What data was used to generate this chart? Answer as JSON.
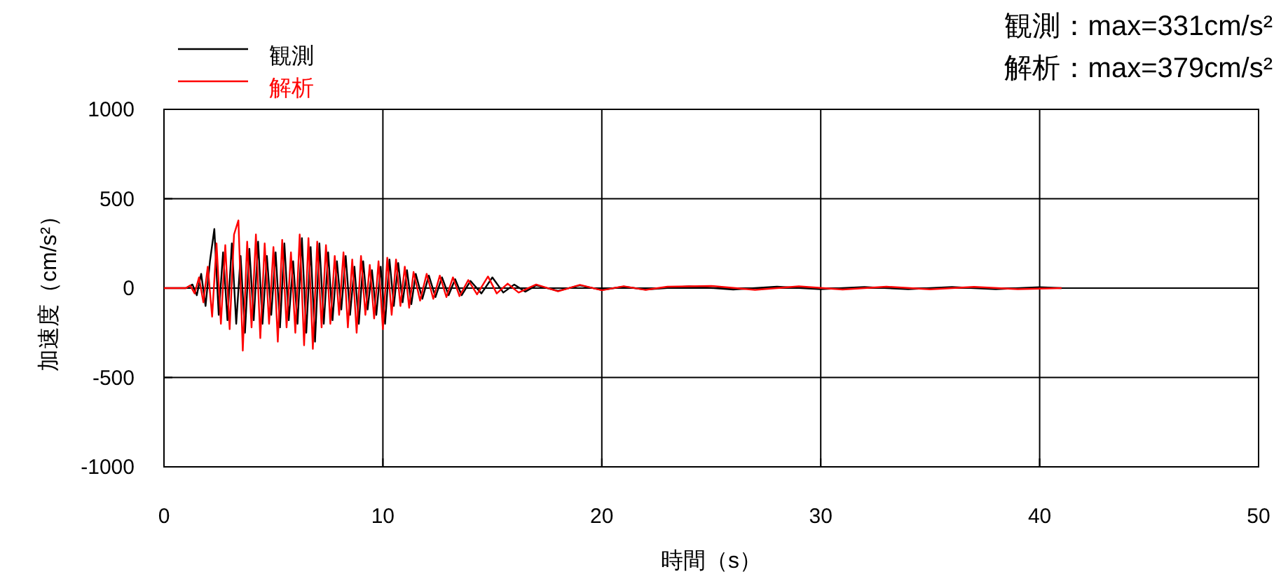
{
  "chart_data": {
    "type": "line",
    "xlabel": "時間（s）",
    "ylabel": "加速度（cm/s²）",
    "annotations": [
      "観測：max=331cm/s²",
      "解析：max=379cm/s²"
    ],
    "xlim": [
      0,
      50
    ],
    "xticks": [
      0,
      10,
      20,
      30,
      40,
      50
    ],
    "ylim": [
      -1000,
      1000
    ],
    "yticks": [
      -1000,
      -500,
      0,
      500,
      1000
    ],
    "grid": true,
    "legend": "top left",
    "marker": "none",
    "line_style": "solid",
    "series": [
      {
        "name": "観測",
        "color": "#000000",
        "x": [
          0,
          1.0,
          1.3,
          1.5,
          1.7,
          1.9,
          2.1,
          2.3,
          2.5,
          2.7,
          2.9,
          3.1,
          3.3,
          3.5,
          3.7,
          3.9,
          4.1,
          4.3,
          4.5,
          4.7,
          4.9,
          5.1,
          5.3,
          5.5,
          5.7,
          5.9,
          6.1,
          6.3,
          6.5,
          6.7,
          6.9,
          7.1,
          7.3,
          7.5,
          7.7,
          7.9,
          8.1,
          8.3,
          8.5,
          8.7,
          8.9,
          9.1,
          9.3,
          9.5,
          9.7,
          9.9,
          10.1,
          10.3,
          10.5,
          10.7,
          10.9,
          11.1,
          11.3,
          11.5,
          11.8,
          12.1,
          12.4,
          12.7,
          13.0,
          13.3,
          13.6,
          14.0,
          14.5,
          15.0,
          15.5,
          16.0,
          16.5,
          17,
          18,
          19,
          20,
          21,
          22,
          24,
          26,
          28,
          30,
          32,
          34,
          36,
          38,
          40,
          41
        ],
        "values": [
          0,
          0,
          20,
          -40,
          80,
          -100,
          150,
          331,
          -150,
          200,
          -180,
          250,
          -200,
          180,
          -250,
          220,
          -180,
          260,
          -200,
          180,
          -150,
          200,
          -220,
          250,
          -180,
          150,
          -200,
          280,
          -250,
          230,
          -300,
          250,
          -200,
          200,
          -180,
          150,
          -120,
          180,
          -150,
          120,
          -200,
          150,
          -120,
          100,
          -150,
          120,
          -200,
          160,
          -100,
          140,
          -80,
          100,
          -90,
          80,
          -60,
          70,
          -50,
          60,
          -40,
          50,
          -40,
          40,
          -30,
          60,
          -25,
          20,
          -20,
          15,
          -15,
          15,
          -10,
          8,
          -8,
          10,
          -8,
          8,
          -6,
          6,
          -6,
          6,
          -6,
          5,
          0
        ]
      },
      {
        "name": "解析",
        "color": "#ff0000",
        "x": [
          0,
          1.0,
          1.2,
          1.4,
          1.6,
          1.8,
          2.0,
          2.2,
          2.4,
          2.6,
          2.8,
          3.0,
          3.2,
          3.4,
          3.6,
          3.8,
          4.0,
          4.2,
          4.4,
          4.6,
          4.8,
          5.0,
          5.2,
          5.4,
          5.6,
          5.8,
          6.0,
          6.2,
          6.4,
          6.6,
          6.8,
          7.0,
          7.2,
          7.4,
          7.6,
          7.8,
          8.0,
          8.2,
          8.4,
          8.6,
          8.8,
          9.0,
          9.2,
          9.4,
          9.6,
          9.8,
          10.0,
          10.2,
          10.4,
          10.6,
          10.8,
          11.0,
          11.2,
          11.4,
          11.7,
          12.0,
          12.3,
          12.6,
          12.9,
          13.2,
          13.5,
          13.9,
          14.3,
          14.8,
          15.2,
          15.7,
          16.2,
          17,
          18,
          19,
          20,
          21,
          22,
          23,
          25,
          27,
          29,
          31,
          33,
          35,
          37,
          39,
          41
        ],
        "values": [
          0,
          0,
          15,
          -30,
          60,
          -80,
          120,
          -160,
          250,
          -200,
          240,
          -230,
          300,
          379,
          -350,
          260,
          -220,
          300,
          -280,
          250,
          -200,
          230,
          -300,
          270,
          -220,
          200,
          -250,
          300,
          -320,
          280,
          -340,
          260,
          -220,
          240,
          -200,
          180,
          -150,
          200,
          -220,
          160,
          -250,
          180,
          -150,
          130,
          -170,
          150,
          -230,
          170,
          -150,
          160,
          -100,
          120,
          -110,
          90,
          -70,
          80,
          -60,
          70,
          -50,
          60,
          -45,
          45,
          -35,
          65,
          -30,
          25,
          -25,
          20,
          -18,
          18,
          -12,
          10,
          -10,
          8,
          12,
          -10,
          10,
          -8,
          8,
          -7,
          7,
          -6,
          0
        ]
      }
    ]
  }
}
